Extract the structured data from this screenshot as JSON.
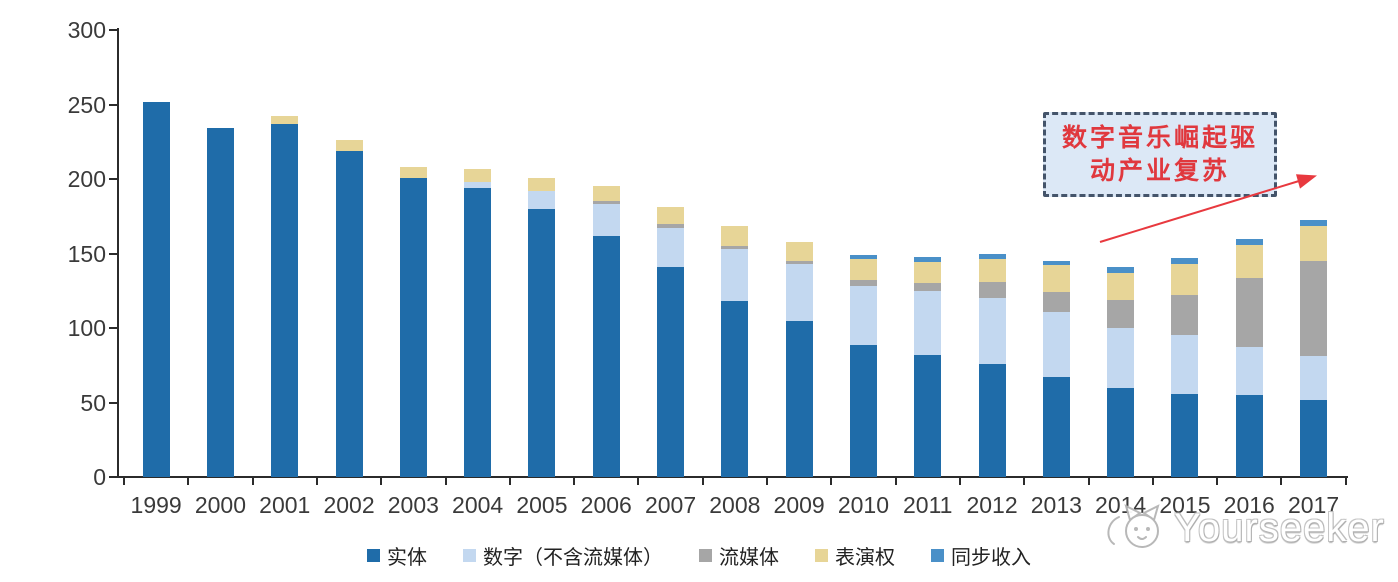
{
  "chart_data": {
    "type": "bar",
    "stacked": true,
    "title": "",
    "xlabel": "",
    "ylabel": "",
    "ylim": [
      0,
      300
    ],
    "y_ticks": [
      0,
      50,
      100,
      150,
      200,
      250,
      300
    ],
    "grid": false,
    "legend_position": "bottom",
    "categories": [
      "1999",
      "2000",
      "2001",
      "2002",
      "2003",
      "2004",
      "2005",
      "2006",
      "2007",
      "2008",
      "2009",
      "2010",
      "2011",
      "2012",
      "2013",
      "2014",
      "2015",
      "2016",
      "2017"
    ],
    "series": [
      {
        "key": "physical",
        "name": "实体",
        "color": "#1F6CA9",
        "values": [
          252,
          234,
          237,
          218.5,
          201,
          194,
          180,
          162,
          141,
          118,
          104.5,
          88.5,
          82,
          76,
          67,
          60,
          56,
          55,
          52
        ]
      },
      {
        "key": "digital_excl_streaming",
        "name": "数字（不含流媒体）",
        "color": "#C3D8F0",
        "values": [
          0,
          0,
          0,
          0,
          0,
          4,
          12,
          21,
          26,
          35,
          38.5,
          40,
          43,
          44,
          44,
          40,
          39,
          32,
          29
        ]
      },
      {
        "key": "streaming",
        "name": "流媒体",
        "color": "#A6A6A6",
        "values": [
          0,
          0,
          0,
          0,
          0,
          0,
          0,
          2,
          3,
          2,
          2,
          3.5,
          5.5,
          11,
          13,
          18.5,
          27,
          46.5,
          64
        ]
      },
      {
        "key": "performance_rights",
        "name": "表演权",
        "color": "#E7D597",
        "values": [
          0,
          0,
          5.5,
          7.5,
          7,
          9,
          9,
          10,
          11,
          13.5,
          13,
          14.5,
          14,
          15.5,
          18.5,
          18.5,
          21,
          22.5,
          23.5
        ]
      },
      {
        "key": "sync_revenue",
        "name": "同步收入",
        "color": "#4A90C8",
        "values": [
          0,
          0,
          0,
          0,
          0,
          0,
          0,
          0,
          0,
          0,
          0,
          2.5,
          3,
          3,
          2.5,
          4,
          4,
          4,
          4
        ]
      }
    ],
    "totals": [
      252,
      234,
      242.5,
      226,
      208,
      207,
      201,
      195,
      181,
      168.5,
      158,
      149,
      147.5,
      149.5,
      145,
      141,
      147,
      160,
      172.5
    ]
  },
  "annotation": {
    "full_text": "数字音乐崛起驱动产业复苏",
    "line1": "数字音乐崛起驱",
    "line2": "动产业复苏",
    "box_fill": "#DCE8F6",
    "border_color": "#44546A",
    "text_color": "#E0383E",
    "arrow_color": "#E8393F"
  },
  "watermark": {
    "text": "Yourseeker",
    "icon": "cat-logo",
    "text_color": "#FFFFFF",
    "outline_color": "#ABABAB"
  },
  "axis_color": "#2B2B2B",
  "label_color": "#3A3A3A"
}
